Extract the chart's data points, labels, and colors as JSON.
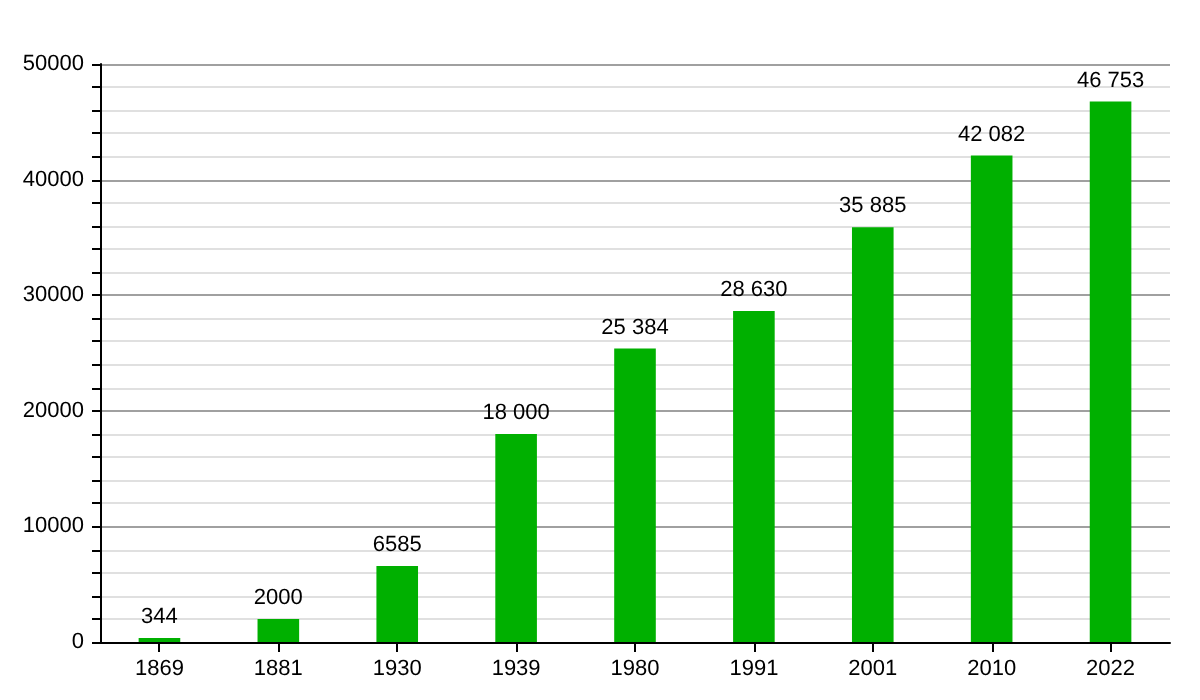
{
  "chart_data": {
    "type": "bar",
    "categories": [
      "1869",
      "1881",
      "1930",
      "1939",
      "1980",
      "1991",
      "2001",
      "2010",
      "2022"
    ],
    "values": [
      344,
      2000,
      6585,
      18000,
      25384,
      28630,
      35885,
      42082,
      46753
    ],
    "value_labels": [
      "344",
      "2000",
      "6585",
      "18 000",
      "25 384",
      "28 630",
      "35 885",
      "42 082",
      "46 753"
    ],
    "color": "#00b000",
    "ylim": [
      0,
      50000
    ],
    "yticks": [
      0,
      {
        "value": 2000,
        "label": null
      },
      {
        "value": 4000,
        "label": null
      },
      {
        "value": 6000,
        "label": null
      },
      {
        "value": 8000,
        "label": null
      },
      10000,
      {
        "value": 12000,
        "label": null
      },
      {
        "value": 14000,
        "label": null
      },
      {
        "value": 16000,
        "label": null
      },
      {
        "value": 18000,
        "label": null
      },
      20000,
      {
        "value": 22000,
        "label": null
      },
      {
        "value": 24000,
        "label": null
      },
      {
        "value": 26000,
        "label": null
      },
      {
        "value": 28000,
        "label": null
      },
      30000,
      {
        "value": 32000,
        "label": null
      },
      {
        "value": 34000,
        "label": null
      },
      {
        "value": 36000,
        "label": null
      },
      {
        "value": 38000,
        "label": null
      },
      40000,
      {
        "value": 42000,
        "label": null
      },
      {
        "value": 44000,
        "label": null
      },
      {
        "value": 46000,
        "label": null
      },
      {
        "value": 48000,
        "label": null
      },
      50000
    ],
    "grid": true
  }
}
